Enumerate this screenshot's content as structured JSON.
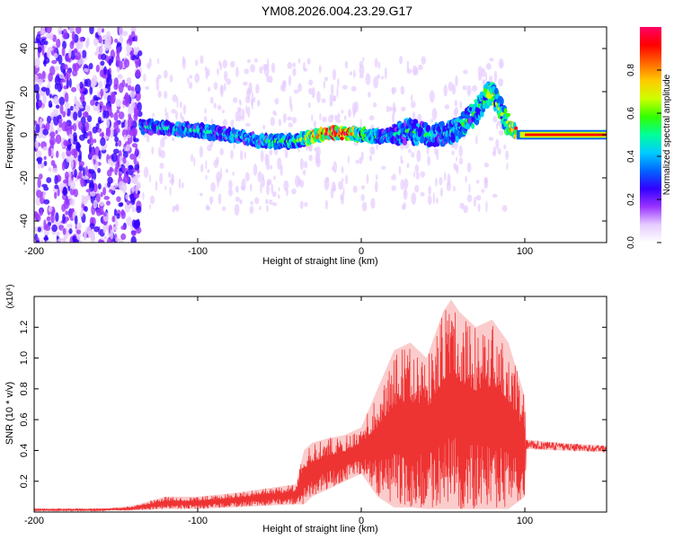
{
  "title": "YM08.2026.004.23.29.G17",
  "chart_data": [
    {
      "type": "heatmap",
      "title": "YM08.2026.004.23.29.G17",
      "xlabel": "Height of straight line (km)",
      "ylabel": "Frequency (Hz)",
      "xlim": [
        -200,
        150
      ],
      "ylim": [
        -50,
        50
      ],
      "xticks": [
        -200,
        -100,
        0,
        100
      ],
      "yticks": [
        -40,
        -20,
        0,
        20,
        40
      ],
      "colorbar": {
        "label": "Normalized spectral amplitude",
        "range": [
          0,
          1
        ],
        "ticks": [
          "0.0",
          "0.2",
          "0.4",
          "0.6",
          "0.8"
        ],
        "colormap": [
          "#ffffff",
          "#e6ccff",
          "#9933ff",
          "#3300ff",
          "#0066ff",
          "#00ccff",
          "#00ff99",
          "#33ff00",
          "#ccff00",
          "#ffcc00",
          "#ff6600",
          "#ff0000",
          "#ff0066"
        ]
      },
      "ridge": {
        "x": [
          -135,
          -120,
          -100,
          -80,
          -60,
          -40,
          -30,
          -20,
          -10,
          0,
          10,
          20,
          30,
          40,
          50,
          60,
          70,
          75,
          80,
          85,
          90,
          95,
          100,
          120,
          150
        ],
        "y": [
          4,
          3,
          2,
          0,
          -3,
          -3,
          -1,
          0.5,
          0.5,
          0,
          -1,
          0,
          2,
          0,
          0,
          3,
          10,
          16,
          20,
          12,
          4,
          1,
          0.5,
          0.5,
          0.5
        ],
        "amplitude": [
          0.3,
          0.35,
          0.35,
          0.35,
          0.4,
          0.45,
          0.65,
          0.85,
          0.85,
          0.5,
          0.4,
          0.35,
          0.4,
          0.4,
          0.35,
          0.4,
          0.4,
          0.5,
          0.6,
          0.5,
          0.55,
          0.8,
          0.95,
          0.95,
          0.95
        ]
      },
      "noise_regions": [
        {
          "x": [
            -200,
            -135
          ],
          "description": "broadband noise"
        }
      ]
    },
    {
      "type": "line",
      "xlabel": "Height of straight line (km)",
      "ylabel": "SNR (10 * v/v)",
      "y_multiplier": "(x10⁴)",
      "xlim": [
        -200,
        150
      ],
      "ylim": [
        0,
        1.4
      ],
      "xticks": [
        -200,
        -100,
        0,
        100
      ],
      "yticks": [
        "0.2",
        "0.4",
        "0.6",
        "0.8",
        "1.0",
        "1.2"
      ],
      "series": [
        {
          "name": "SNR",
          "color": "#ee3333",
          "envelope_x": [
            -200,
            -160,
            -140,
            -120,
            -100,
            -80,
            -60,
            -40,
            -35,
            -30,
            -20,
            -10,
            0,
            10,
            20,
            30,
            40,
            50,
            55,
            60,
            70,
            80,
            90,
            100,
            101,
            120,
            150
          ],
          "envelope_low": [
            0.01,
            0.01,
            0.01,
            0.02,
            0.02,
            0.03,
            0.04,
            0.05,
            0.05,
            0.1,
            0.15,
            0.2,
            0.25,
            0.1,
            0.03,
            0.03,
            0.02,
            0.02,
            0.02,
            0.02,
            0.02,
            0.02,
            0.02,
            0.1,
            0.41,
            0.4,
            0.39
          ],
          "envelope_high": [
            0.02,
            0.02,
            0.04,
            0.1,
            0.1,
            0.12,
            0.15,
            0.18,
            0.4,
            0.45,
            0.48,
            0.5,
            0.55,
            0.8,
            1.05,
            1.1,
            1.0,
            1.3,
            1.38,
            1.3,
            1.2,
            1.25,
            1.1,
            0.75,
            0.47,
            0.45,
            0.43
          ],
          "trace_note": "dense oscillating trace filling envelope"
        }
      ]
    }
  ]
}
